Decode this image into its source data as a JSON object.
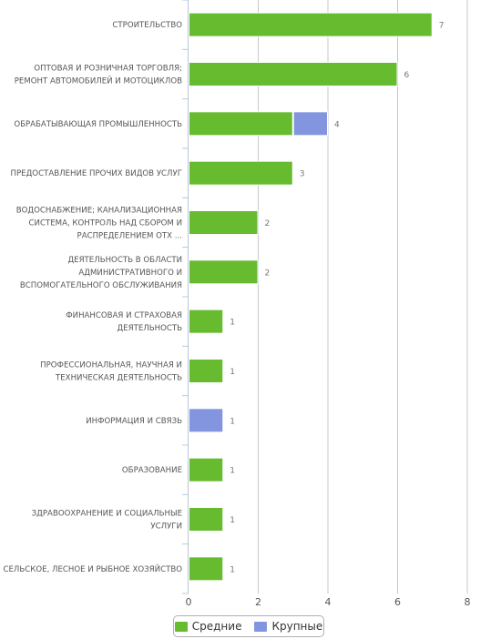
{
  "chart_data": {
    "type": "bar",
    "orientation": "horizontal",
    "stacked": true,
    "categories": [
      [
        "СТРОИТЕЛЬСТВО"
      ],
      [
        "ОПТОВАЯ И РОЗНИЧНАЯ ТОРГОВЛЯ;",
        "РЕМОНТ АВТОМОБИЛЕЙ И МОТОЦИКЛОВ"
      ],
      [
        "ОБРАБАТЫВАЮЩАЯ ПРОМЫШЛЕННОСТЬ"
      ],
      [
        "ПРЕДОСТАВЛЕНИЕ ПРОЧИХ ВИДОВ УСЛУГ"
      ],
      [
        "ВОДОСНАБЖЕНИЕ; КАНАЛИЗАЦИОННАЯ",
        "СИСТЕМА, КОНТРОЛЬ НАД СБОРОМ И",
        "РАСПРЕДЕЛЕНИЕМ ОТХ ..."
      ],
      [
        "ДЕЯТЕЛЬНОСТЬ В ОБЛАСТИ",
        "АДМИНИСТРАТИВНОГО И",
        "ВСПОМОГАТЕЛЬНОГО ОБСЛУЖИВАНИЯ"
      ],
      [
        "ФИНАНСОВАЯ И СТРАХОВАЯ",
        "ДЕЯТЕЛЬНОСТЬ"
      ],
      [
        "ПРОФЕССИОНАЛЬНАЯ, НАУЧНАЯ И",
        "ТЕХНИЧЕСКАЯ ДЕЯТЕЛЬНОСТЬ"
      ],
      [
        "ИНФОРМАЦИЯ И СВЯЗЬ"
      ],
      [
        "ОБРАЗОВАНИЕ"
      ],
      [
        "ЗДРАВООХРАНЕНИЕ И СОЦИАЛЬНЫЕ",
        "УСЛУГИ"
      ],
      [
        "СЕЛЬСКОЕ, ЛЕСНОЕ И РЫБНОЕ ХОЗЯЙСТВО"
      ]
    ],
    "series": [
      {
        "name": "Средние",
        "color": "#66bb2f",
        "values": [
          7,
          6,
          3,
          3,
          2,
          2,
          1,
          1,
          0,
          1,
          1,
          1
        ]
      },
      {
        "name": "Крупные",
        "color": "#8295de",
        "values": [
          0,
          0,
          1,
          0,
          0,
          0,
          0,
          0,
          1,
          0,
          0,
          0
        ]
      }
    ],
    "totals": [
      7,
      6,
      4,
      3,
      2,
      2,
      1,
      1,
      1,
      1,
      1,
      1
    ],
    "xlim": [
      0,
      8
    ],
    "xticks": [
      0,
      2,
      4,
      6,
      8
    ],
    "grid": "vertical",
    "legend_position": "bottom-center"
  }
}
